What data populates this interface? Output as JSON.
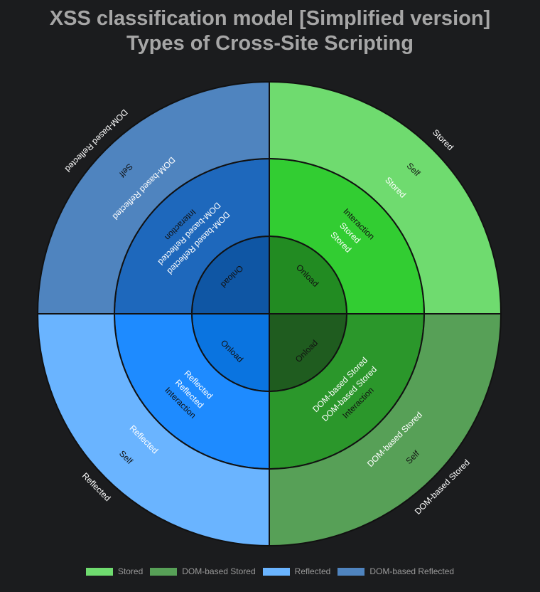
{
  "title_line1": "XSS classification model [Simplified version]",
  "title_line2": "Types of Cross-Site Scripting",
  "chart_data": {
    "type": "sunburst",
    "levels": [
      "Onload",
      "Interaction",
      "Self"
    ],
    "series": [
      {
        "name": "Stored",
        "color": "#6fdb6f",
        "rings": [
          {
            "category": "Onload",
            "label": "Onload",
            "sublabel": "Stored",
            "color": "#228b22",
            "label_color": "#111111",
            "sub_color": "#ffffff"
          },
          {
            "category": "Interaction",
            "label": "Interaction",
            "sublabel": "Stored",
            "color": "#32cd32",
            "label_color": "#111111",
            "sub_color": "#ffffff"
          },
          {
            "category": "Self",
            "label": "Self",
            "sublabel": "Stored",
            "color": "#6fdb6f",
            "label_color": "#111111",
            "sub_color": "#ffffff"
          }
        ]
      },
      {
        "name": "DOM-based Stored",
        "color": "#57a057",
        "rings": [
          {
            "category": "Onload",
            "label": "Onload",
            "sublabel": "DOM-based Stored",
            "color": "#1f5c1f",
            "label_color": "#111111",
            "sub_color": "#ffffff"
          },
          {
            "category": "Interaction",
            "label": "Interaction",
            "sublabel": "DOM-based Stored",
            "color": "#2b972b",
            "label_color": "#111111",
            "sub_color": "#ffffff"
          },
          {
            "category": "Self",
            "label": "Self",
            "sublabel": "DOM-based Stored",
            "color": "#57a057",
            "label_color": "#111111",
            "sub_color": "#ffffff"
          }
        ]
      },
      {
        "name": "Reflected",
        "color": "#6ab4ff",
        "rings": [
          {
            "category": "Onload",
            "label": "Onload",
            "sublabel": "Reflected",
            "color": "#0a74e0",
            "label_color": "#111111",
            "sub_color": "#ffffff"
          },
          {
            "category": "Interaction",
            "label": "Interaction",
            "sublabel": "Reflected",
            "color": "#1e8bff",
            "label_color": "#111111",
            "sub_color": "#ffffff"
          },
          {
            "category": "Self",
            "label": "Self",
            "sublabel": "Reflected",
            "color": "#6ab4ff",
            "label_color": "#111111",
            "sub_color": "#ffffff"
          }
        ]
      },
      {
        "name": "DOM-based Reflected",
        "color": "#4f84bf",
        "rings": [
          {
            "category": "Onload",
            "label": "Onload",
            "sublabel": "DOM-based Reflected",
            "color": "#0f56a4",
            "label_color": "#111111",
            "sub_color": "#ffffff"
          },
          {
            "category": "Interaction",
            "label": "Interaction",
            "sublabel": "DOM-based Reflected",
            "color": "#1e68bc",
            "label_color": "#111111",
            "sub_color": "#ffffff"
          },
          {
            "category": "Self",
            "label": "Self",
            "sublabel": "DOM-based Reflected",
            "color": "#4f84bf",
            "label_color": "#111111",
            "sub_color": "#ffffff"
          }
        ]
      }
    ],
    "values": [
      1,
      1,
      1,
      1
    ],
    "legend_position": "bottom"
  }
}
